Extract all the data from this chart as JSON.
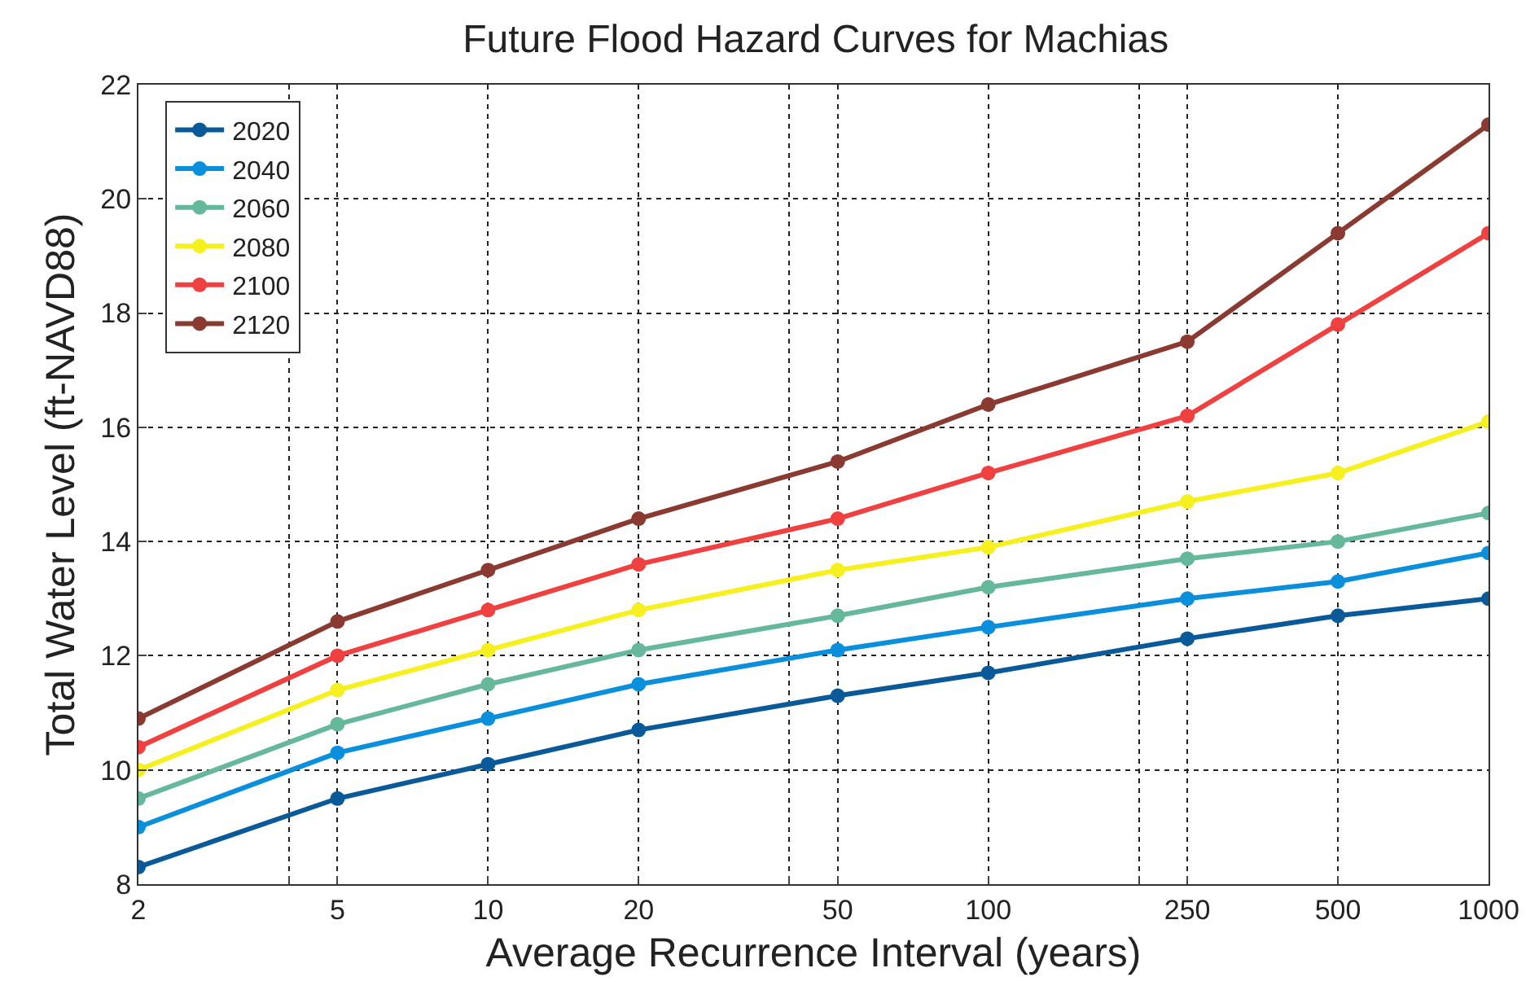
{
  "chart_data": {
    "type": "line",
    "title": "Future Flood Hazard Curves for Machias",
    "xlabel": "Average Recurrence Interval (years)",
    "ylabel": "Total Water Level (ft-NAVD88)",
    "x": [
      2,
      5,
      10,
      20,
      50,
      100,
      250,
      500,
      1000
    ],
    "series": [
      {
        "name": "2020",
        "color": "#0a5a9a",
        "values": [
          8.3,
          9.5,
          10.1,
          10.7,
          11.3,
          11.7,
          12.3,
          12.7,
          13.0
        ]
      },
      {
        "name": "2040",
        "color": "#0a8fdc",
        "values": [
          9.0,
          10.3,
          10.9,
          11.5,
          12.1,
          12.5,
          13.0,
          13.3,
          13.8
        ]
      },
      {
        "name": "2060",
        "color": "#66b89a",
        "values": [
          9.5,
          10.8,
          11.5,
          12.1,
          12.7,
          13.2,
          13.7,
          14.0,
          14.5
        ]
      },
      {
        "name": "2080",
        "color": "#f5f01e",
        "values": [
          10.0,
          11.4,
          12.1,
          12.8,
          13.5,
          13.9,
          14.7,
          15.2,
          16.1
        ]
      },
      {
        "name": "2100",
        "color": "#f04040",
        "values": [
          10.4,
          12.0,
          12.8,
          13.6,
          14.4,
          15.2,
          16.2,
          17.8,
          19.4
        ]
      },
      {
        "name": "2120",
        "color": "#8a3a30",
        "values": [
          10.9,
          12.6,
          13.5,
          14.4,
          15.4,
          16.4,
          17.5,
          19.4,
          21.3
        ]
      }
    ],
    "log": "x",
    "xlim": [
      2,
      1000
    ],
    "xticks": [
      2,
      {
        "value": 4,
        "label": null
      },
      5,
      10,
      20,
      {
        "value": 40,
        "label": null
      },
      50,
      100,
      {
        "value": 200,
        "label": null
      },
      250,
      500,
      1000
    ],
    "ylim": [
      8,
      22
    ],
    "yticks": [
      8,
      10,
      12,
      14,
      16,
      18,
      20,
      22
    ],
    "grid": true,
    "legend": "top left",
    "marker": "circle",
    "line_style": "solid"
  }
}
